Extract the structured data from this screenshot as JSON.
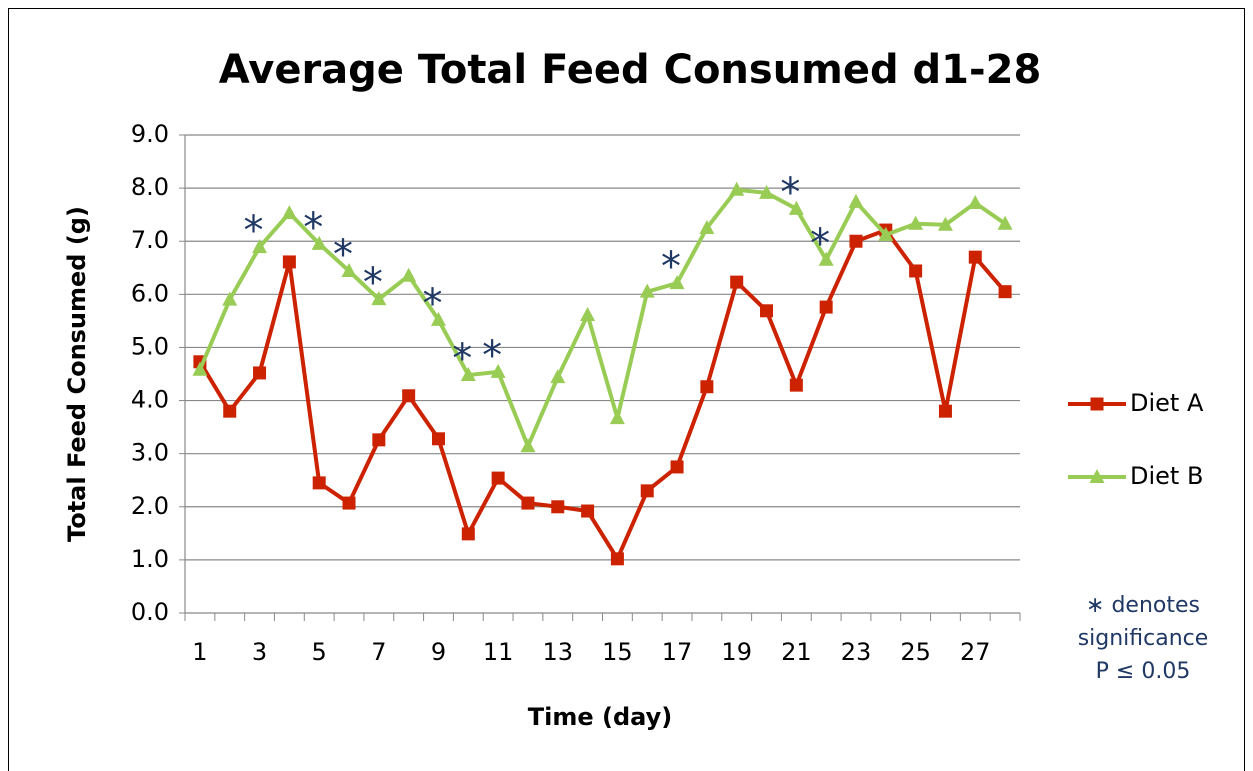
{
  "chart_data": {
    "type": "line",
    "title": "Average Total Feed Consumed d1-28",
    "x_label": "Time (day)",
    "y_label": "Total Feed Consumed (g)",
    "x": [
      1,
      2,
      3,
      4,
      5,
      6,
      7,
      8,
      9,
      10,
      11,
      12,
      13,
      14,
      15,
      16,
      17,
      18,
      19,
      20,
      21,
      22,
      23,
      24,
      25,
      26,
      27,
      28
    ],
    "xlim": [
      0.5,
      28.5
    ],
    "xticks": [
      1,
      3,
      5,
      7,
      9,
      11,
      13,
      15,
      17,
      19,
      21,
      23,
      25,
      27
    ],
    "ylim": [
      0,
      9
    ],
    "yticks": [
      {
        "value": 0,
        "label": "0.0"
      },
      {
        "value": 1,
        "label": "1.0"
      },
      {
        "value": 2,
        "label": "2.0"
      },
      {
        "value": 3,
        "label": "3.0"
      },
      {
        "value": 4,
        "label": "4.0"
      },
      {
        "value": 5,
        "label": "5.0"
      },
      {
        "value": 6,
        "label": "6.0"
      },
      {
        "value": 7,
        "label": "7.0"
      },
      {
        "value": 8,
        "label": "8.0"
      },
      {
        "value": 9,
        "label": "9.0"
      }
    ],
    "grid": true,
    "legend": "right",
    "series": [
      {
        "name": "Diet A",
        "color": "#cc2200",
        "marker": "square",
        "values": [
          4.73,
          3.8,
          4.52,
          6.61,
          2.45,
          2.07,
          3.26,
          4.09,
          3.28,
          1.49,
          2.54,
          2.07,
          2.0,
          1.92,
          1.02,
          2.3,
          2.75,
          4.26,
          6.23,
          5.69,
          4.29,
          5.76,
          7.0,
          7.21,
          6.44,
          3.8,
          6.7,
          6.05
        ]
      },
      {
        "name": "Diet B",
        "color": "#99cc55",
        "marker": "triangle",
        "values": [
          4.58,
          5.9,
          6.89,
          7.53,
          6.95,
          6.44,
          5.91,
          6.35,
          5.52,
          4.48,
          4.54,
          3.14,
          4.44,
          5.61,
          3.67,
          6.05,
          6.21,
          7.25,
          7.97,
          7.91,
          7.61,
          6.65,
          7.74,
          7.12,
          7.33,
          7.31,
          7.72,
          7.33
        ]
      }
    ],
    "annotations": [
      {
        "text": "*",
        "x": 3
      },
      {
        "text": "*",
        "x": 5
      },
      {
        "text": "*",
        "x": 6
      },
      {
        "text": "*",
        "x": 7
      },
      {
        "text": "*",
        "x": 9
      },
      {
        "text": "*",
        "x": 10
      },
      {
        "text": "*",
        "x": 11
      },
      {
        "text": "*",
        "x": 17
      },
      {
        "text": "*",
        "x": 21
      },
      {
        "text": "*",
        "x": 22
      }
    ],
    "note": [
      "∗ denotes",
      "significance",
      "P ≤ 0.05"
    ]
  }
}
